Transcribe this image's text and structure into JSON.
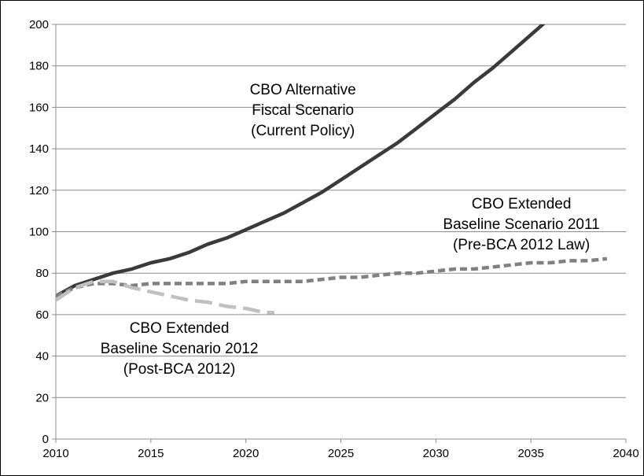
{
  "chart_data": {
    "type": "line",
    "title": "",
    "xlabel": "",
    "ylabel": "",
    "xlim": [
      2010,
      2040
    ],
    "ylim": [
      0,
      200
    ],
    "x_ticks": [
      "2010",
      "2015",
      "2020",
      "2025",
      "2030",
      "2035",
      "2040"
    ],
    "y_ticks": [
      "0",
      "20",
      "40",
      "60",
      "80",
      "100",
      "120",
      "140",
      "160",
      "180",
      "200"
    ],
    "grid": true,
    "legend": "none",
    "series": [
      {
        "color": "#3a3a3a",
        "dash": "solid",
        "x": [
          2010,
          2011,
          2012,
          2013,
          2014,
          2015,
          2016,
          2017,
          2018,
          2019,
          2020,
          2021,
          2022,
          2023,
          2024,
          2025,
          2026,
          2027,
          2028,
          2029,
          2030,
          2031,
          2032,
          2033,
          2034,
          2035,
          2036,
          2036.5
        ],
        "y": [
          69,
          74,
          77,
          80,
          82,
          85,
          87,
          90,
          94,
          97,
          101,
          105,
          109,
          114,
          119,
          125,
          131,
          137,
          143,
          150,
          157,
          164,
          172,
          179,
          187,
          195,
          203,
          207
        ]
      },
      {
        "color": "#808080",
        "dash": "short-dash",
        "x": [
          2010,
          2011,
          2012,
          2013,
          2014,
          2015,
          2016,
          2017,
          2018,
          2019,
          2020,
          2021,
          2022,
          2023,
          2024,
          2025,
          2026,
          2027,
          2028,
          2029,
          2030,
          2031,
          2032,
          2033,
          2034,
          2035,
          2036,
          2037,
          2038,
          2039
        ],
        "y": [
          69,
          73,
          75,
          75,
          74,
          75,
          75,
          75,
          75,
          75,
          76,
          76,
          76,
          76,
          77,
          78,
          78,
          79,
          80,
          80,
          81,
          82,
          82,
          83,
          84,
          85,
          85,
          86,
          86,
          87
        ]
      },
      {
        "color": "#c0c0c0",
        "dash": "long-dash",
        "x": [
          2010,
          2011,
          2012,
          2013,
          2014,
          2015,
          2016,
          2017,
          2018,
          2019,
          2020,
          2021,
          2021.5
        ],
        "y": [
          67,
          73,
          76,
          76,
          73,
          71,
          69,
          67,
          66,
          64,
          63,
          61,
          61
        ]
      }
    ],
    "annotations": [
      {
        "lines": [
          "CBO Alternative",
          "Fiscal Scenario",
          "(Current Policy)"
        ],
        "at": [
          2023,
          159
        ]
      },
      {
        "lines": [
          "CBO Extended",
          "Baseline Scenario 2011",
          "(Pre-BCA 2012 Law)"
        ],
        "at": [
          2034.5,
          104
        ]
      },
      {
        "lines": [
          "CBO Extended",
          "Baseline Scenario 2012",
          "(Post-BCA 2012)"
        ],
        "at": [
          2016.5,
          44
        ]
      }
    ]
  }
}
